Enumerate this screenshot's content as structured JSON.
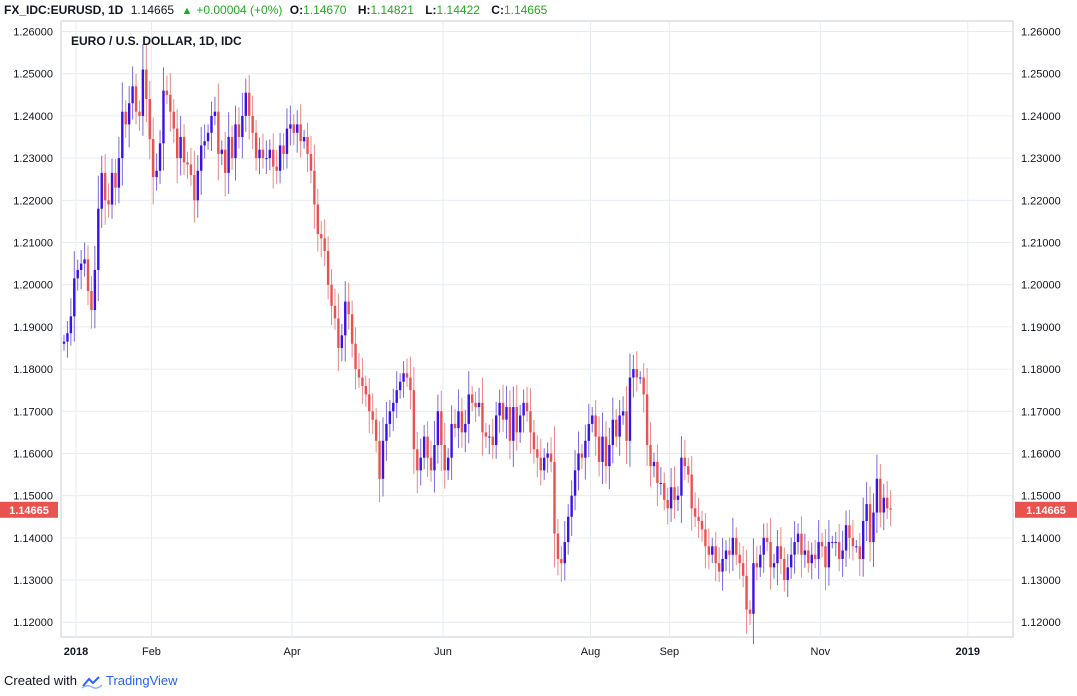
{
  "header": {
    "symbol": "FX_IDC:EURUSD, 1D",
    "last": "1.14665",
    "change_arrow": "▲",
    "change": "+0.00004 (+0%)",
    "o_label": "O:",
    "o_value": "1.14670",
    "h_label": "H:",
    "h_value": "1.14821",
    "l_label": "L:",
    "l_value": "1.14422",
    "c_label": "C:",
    "c_value": "1.14665"
  },
  "footer": {
    "created_with": "Created with",
    "brand": "TradingView"
  },
  "colors": {
    "up": "#3a12e6",
    "down": "#e8534f",
    "grid": "#e6ecf2",
    "price_tag": "#e8534f",
    "header_value": "#22ab22"
  },
  "chart_data": {
    "type": "candlestick",
    "title": "EURO / U.S. DOLLAR, 1D, IDC",
    "ylim": [
      1.1165,
      1.2625
    ],
    "yticks": [
      "1.26000",
      "1.25000",
      "1.24000",
      "1.23000",
      "1.22000",
      "1.21000",
      "1.20000",
      "1.19000",
      "1.18000",
      "1.17000",
      "1.16000",
      "1.15000",
      "1.14000",
      "1.13000",
      "1.12000"
    ],
    "last_price_label": "1.14665",
    "xticks": [
      {
        "label": "2018",
        "bold": true,
        "day": 0
      },
      {
        "label": "Feb",
        "bold": false,
        "day": 22
      },
      {
        "label": "Apr",
        "bold": false,
        "day": 63
      },
      {
        "label": "Jun",
        "bold": false,
        "day": 107
      },
      {
        "label": "Aug",
        "bold": false,
        "day": 150
      },
      {
        "label": "Sep",
        "bold": false,
        "day": 173
      },
      {
        "label": "Nov",
        "bold": false,
        "day": 217
      },
      {
        "label": "2019",
        "bold": true,
        "day": 260
      }
    ],
    "grid": true,
    "closes": [
      1.1865,
      1.1885,
      1.1925,
      1.2015,
      1.2035,
      1.205,
      1.206,
      1.1985,
      1.194,
      1.2035,
      1.218,
      1.2265,
      1.22,
      1.219,
      1.2265,
      1.223,
      1.23,
      1.241,
      1.238,
      1.243,
      1.247,
      1.241,
      1.24,
      1.251,
      1.244,
      1.2345,
      1.2255,
      1.227,
      1.2335,
      1.246,
      1.245,
      1.241,
      1.237,
      1.23,
      1.235,
      1.229,
      1.2285,
      1.226,
      1.22,
      1.227,
      1.233,
      1.234,
      1.236,
      1.24,
      1.241,
      1.231,
      1.232,
      1.2265,
      1.235,
      1.23,
      1.238,
      1.235,
      1.24,
      1.2455,
      1.24,
      1.236,
      1.23,
      1.232,
      1.23,
      1.23,
      1.232,
      1.228,
      1.227,
      1.233,
      1.231,
      1.237,
      1.238,
      1.236,
      1.238,
      1.234,
      1.235,
      1.231,
      1.227,
      1.219,
      1.212,
      1.211,
      1.208,
      1.2,
      1.195,
      1.192,
      1.185,
      1.188,
      1.196,
      1.193,
      1.186,
      1.18,
      1.178,
      1.176,
      1.174,
      1.17,
      1.168,
      1.163,
      1.154,
      1.163,
      1.167,
      1.17,
      1.172,
      1.175,
      1.177,
      1.179,
      1.178,
      1.175,
      1.161,
      1.156,
      1.159,
      1.164,
      1.159,
      1.156,
      1.162,
      1.17,
      1.162,
      1.156,
      1.159,
      1.167,
      1.166,
      1.17,
      1.165,
      1.167,
      1.174,
      1.172,
      1.171,
      1.172,
      1.165,
      1.164,
      1.164,
      1.162,
      1.169,
      1.172,
      1.168,
      1.171,
      1.163,
      1.171,
      1.165,
      1.169,
      1.172,
      1.17,
      1.165,
      1.161,
      1.159,
      1.156,
      1.159,
      1.16,
      1.158,
      1.141,
      1.135,
      1.134,
      1.139,
      1.145,
      1.15,
      1.156,
      1.16,
      1.159,
      1.163,
      1.167,
      1.169,
      1.164,
      1.158,
      1.164,
      1.157,
      1.162,
      1.168,
      1.164,
      1.169,
      1.17,
      1.163,
      1.178,
      1.18,
      1.178,
      1.178,
      1.174,
      1.162,
      1.157,
      1.158,
      1.153,
      1.153,
      1.149,
      1.147,
      1.152,
      1.149,
      1.15,
      1.159,
      1.157,
      1.155,
      1.147,
      1.145,
      1.144,
      1.142,
      1.138,
      1.136,
      1.138,
      1.134,
      1.132,
      1.135,
      1.137,
      1.136,
      1.14,
      1.136,
      1.134,
      1.131,
      1.123,
      1.122,
      1.134,
      1.133,
      1.136,
      1.14,
      1.139,
      1.133,
      1.134,
      1.138,
      1.135,
      1.13,
      1.133,
      1.136,
      1.139,
      1.141,
      1.136,
      1.137,
      1.134,
      1.136,
      1.135,
      1.139,
      1.138,
      1.133,
      1.139,
      1.139,
      1.139,
      1.135,
      1.137,
      1.143,
      1.14,
      1.138,
      1.138,
      1.135,
      1.144,
      1.148,
      1.139,
      1.146,
      1.154,
      1.146,
      1.1495,
      1.147,
      1.14665
    ]
  }
}
